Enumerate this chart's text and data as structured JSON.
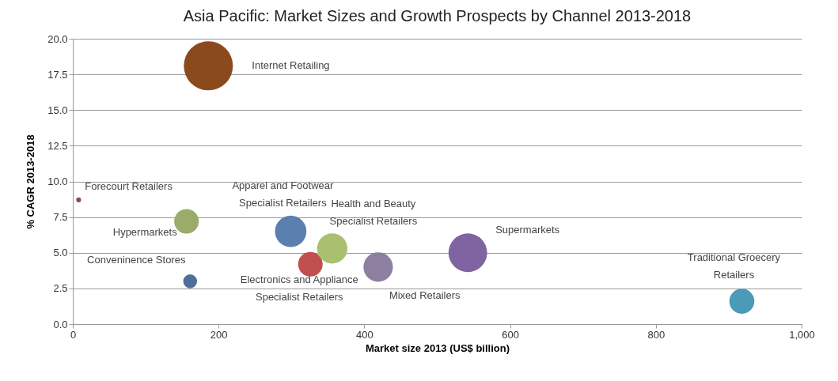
{
  "chart_data": {
    "type": "bubble",
    "title": "Asia Pacific: Market Sizes and Growth Prospects by Channel 2013-2018",
    "xlabel": "Market size 2013 (US$ billion)",
    "ylabel": "% CAGR 2013-2018",
    "xlim": [
      0,
      1000
    ],
    "xticks": [
      0,
      200,
      400,
      600,
      800,
      {
        "value": 1000,
        "label": "1,000"
      }
    ],
    "ylim": [
      0,
      20
    ],
    "yticks": [
      {
        "value": 0,
        "label": "0.0"
      },
      {
        "value": 2.5,
        "label": "2.5"
      },
      {
        "value": 5,
        "label": "5.0"
      },
      {
        "value": 7.5,
        "label": "7.5"
      },
      {
        "value": 10,
        "label": "10.0"
      },
      {
        "value": 12.5,
        "label": "12.5"
      },
      {
        "value": 15,
        "label": "15.0"
      },
      {
        "value": 17.5,
        "label": "17.5"
      },
      {
        "value": 20,
        "label": "20.0"
      }
    ],
    "grid": "y",
    "legend": false,
    "series": [
      {
        "name": "Internet Retailing",
        "color": "#8b4a1e",
        "x": [
          186
        ],
        "values": [
          18.1
        ],
        "sizes": [
          1
        ]
      },
      {
        "name": "Forecourt Retailers",
        "color": "#8b4a5a",
        "x": [
          8
        ],
        "values": [
          8.7
        ],
        "sizes": [
          0.01
        ]
      },
      {
        "name": "Hypermarkets",
        "color": "#9aab6a",
        "x": [
          156
        ],
        "values": [
          7.2
        ],
        "sizes": [
          0.25
        ]
      },
      {
        "name": "Conveninence Stores",
        "color": "#4f6f9a",
        "x": [
          161
        ],
        "values": [
          3.0
        ],
        "sizes": [
          0.08
        ]
      },
      {
        "name": "Apparel and Footwear\nSpecialist Retailers",
        "color": "#5b80b0",
        "x": [
          299
        ],
        "values": [
          6.5
        ],
        "sizes": [
          0.41
        ]
      },
      {
        "name": "Electronics and Appliance\nSpecialist Retailers",
        "color": "#c0504d",
        "x": [
          326
        ],
        "values": [
          4.2
        ],
        "sizes": [
          0.25
        ]
      },
      {
        "name": "Health and Beauty\nSpecialist Retailers",
        "color": "#a8c070",
        "x": [
          356
        ],
        "values": [
          5.3
        ],
        "sizes": [
          0.38
        ]
      },
      {
        "name": "Mixed Retailers",
        "color": "#8c7fa0",
        "x": [
          419
        ],
        "values": [
          4.0
        ],
        "sizes": [
          0.36
        ]
      },
      {
        "name": "Supermarkets",
        "color": "#8064a2",
        "x": [
          542
        ],
        "values": [
          5.0
        ],
        "sizes": [
          0.62
        ]
      },
      {
        "name": "Traditional Groecery\nRetailers",
        "color": "#4a9ab8",
        "x": [
          918
        ],
        "values": [
          1.6
        ],
        "sizes": [
          0.26
        ]
      }
    ]
  }
}
